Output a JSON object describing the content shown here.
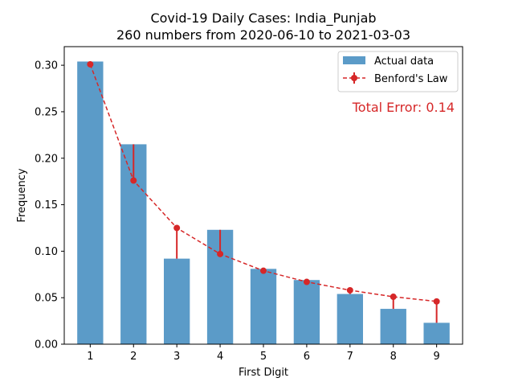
{
  "chart_data": {
    "type": "bar",
    "title": "Covid-19 Daily Cases: India_Punjab",
    "subtitle": "260 numbers from 2020-06-10 to 2021-03-03",
    "xlabel": "First Digit",
    "ylabel": "Frequency",
    "ylim": [
      0,
      0.32
    ],
    "xlim": [
      0.4,
      9.6
    ],
    "categories": [
      "1",
      "2",
      "3",
      "4",
      "5",
      "6",
      "7",
      "8",
      "9"
    ],
    "x": [
      1,
      2,
      3,
      4,
      5,
      6,
      7,
      8,
      9
    ],
    "yticks": [
      0.0,
      0.05,
      0.1,
      0.15,
      0.2,
      0.25,
      0.3
    ],
    "ytick_labels": [
      "0.00",
      "0.05",
      "0.10",
      "0.15",
      "0.20",
      "0.25",
      "0.30"
    ],
    "series": [
      {
        "name": "Actual data",
        "type": "bar",
        "color": "#5b9bc8",
        "values": [
          0.304,
          0.215,
          0.092,
          0.123,
          0.081,
          0.069,
          0.054,
          0.038,
          0.023
        ]
      },
      {
        "name": "Benford's Law",
        "type": "line",
        "color": "#d62728",
        "values": [
          0.301,
          0.176,
          0.125,
          0.097,
          0.079,
          0.067,
          0.058,
          0.051,
          0.046
        ]
      }
    ],
    "annotation": {
      "text": "Total Error: 0.14",
      "color": "#d62728"
    },
    "legend_position": "top-right",
    "grid": false
  }
}
